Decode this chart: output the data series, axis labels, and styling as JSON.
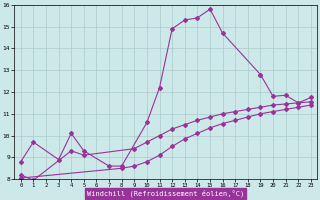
{
  "xlabel": "Windchill (Refroidissement éolien,°C)",
  "bg_color": "#cce8e8",
  "grid_color": "#aacccc",
  "line_color": "#993399",
  "xlim": [
    0,
    23
  ],
  "ylim": [
    8,
    16
  ],
  "xticks": [
    0,
    1,
    2,
    3,
    4,
    5,
    6,
    7,
    8,
    9,
    10,
    11,
    12,
    13,
    14,
    15,
    16,
    17,
    18,
    19,
    20,
    21,
    22,
    23
  ],
  "yticks": [
    8,
    9,
    10,
    11,
    12,
    13,
    14,
    15,
    16
  ],
  "line1_x": [
    0,
    1,
    3,
    4,
    5,
    7,
    8,
    10,
    11,
    12,
    13,
    14,
    15,
    16,
    19
  ],
  "line1_y": [
    8.8,
    9.7,
    8.9,
    10.1,
    9.3,
    8.6,
    8.6,
    10.6,
    12.2,
    14.9,
    15.3,
    15.4,
    15.8,
    14.7,
    12.8
  ],
  "line2_x": [
    0,
    1,
    4,
    5,
    9,
    10,
    11,
    12,
    13,
    14,
    15,
    16,
    17,
    18,
    19,
    20,
    21,
    22,
    23
  ],
  "line2_y": [
    8.2,
    7.95,
    9.3,
    9.1,
    9.4,
    9.7,
    10.0,
    10.3,
    10.5,
    10.7,
    10.85,
    11.0,
    11.1,
    11.2,
    11.3,
    11.4,
    11.45,
    11.5,
    11.55
  ],
  "line3_x": [
    0,
    8,
    9,
    10,
    11,
    12,
    13,
    14,
    15,
    16,
    17,
    18,
    19,
    20,
    21,
    22,
    23
  ],
  "line3_y": [
    8.05,
    8.5,
    8.6,
    8.8,
    9.1,
    9.5,
    9.85,
    10.1,
    10.35,
    10.55,
    10.7,
    10.85,
    11.0,
    11.1,
    11.2,
    11.3,
    11.4
  ],
  "line4_x": [
    19,
    20,
    21,
    22,
    23
  ],
  "line4_y": [
    12.8,
    11.8,
    11.85,
    11.5,
    11.75
  ]
}
